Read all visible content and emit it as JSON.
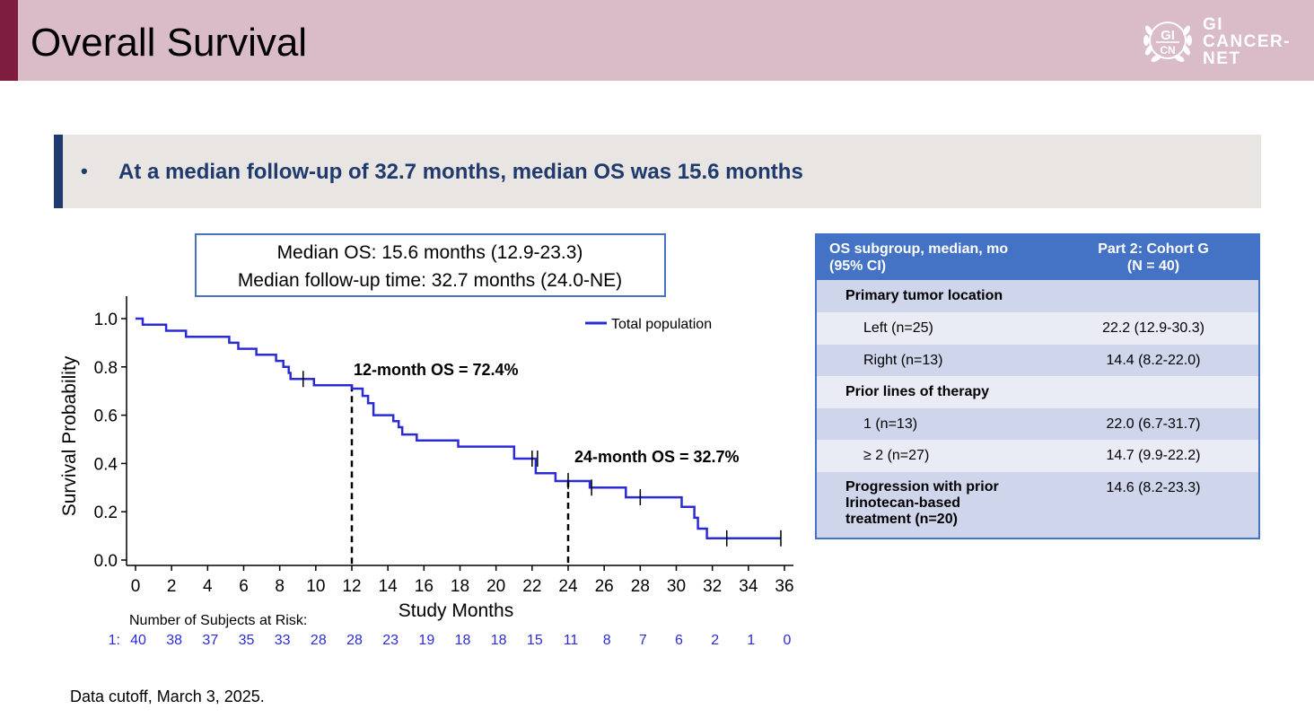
{
  "header": {
    "title": "Overall Survival",
    "logo_lines": [
      "GI",
      "CANCER-",
      "NET"
    ],
    "logo_badge": [
      "GI",
      "CN"
    ]
  },
  "bullet": {
    "marker": "•",
    "text": "At a median follow-up of 32.7 months, median OS was 15.6 months"
  },
  "chart_data": {
    "type": "line",
    "title": "",
    "xlabel": "Study Months",
    "ylabel": "Survival Probability",
    "xlim": [
      0,
      36
    ],
    "ylim": [
      0,
      1.0
    ],
    "x_ticks": [
      "0",
      "2",
      "4",
      "6",
      "8",
      "10",
      "12",
      "14",
      "16",
      "18",
      "20",
      "22",
      "24",
      "26",
      "28",
      "30",
      "32",
      "34",
      "36"
    ],
    "y_ticks": [
      "0.0",
      "0.2",
      "0.4",
      "0.6",
      "0.8",
      "1.0"
    ],
    "legend": {
      "position": "top-right",
      "label": "Total population"
    },
    "series": [
      {
        "name": "Total population",
        "color": "#2b2bd6",
        "points": [
          [
            0,
            1.0
          ],
          [
            0.4,
            1.0
          ],
          [
            0.4,
            0.975
          ],
          [
            1.7,
            0.975
          ],
          [
            1.7,
            0.95
          ],
          [
            2.8,
            0.95
          ],
          [
            2.8,
            0.925
          ],
          [
            5.2,
            0.925
          ],
          [
            5.2,
            0.9
          ],
          [
            5.7,
            0.9
          ],
          [
            5.7,
            0.875
          ],
          [
            6.7,
            0.875
          ],
          [
            6.7,
            0.85
          ],
          [
            7.8,
            0.85
          ],
          [
            7.8,
            0.825
          ],
          [
            8.2,
            0.825
          ],
          [
            8.2,
            0.8
          ],
          [
            8.5,
            0.8
          ],
          [
            8.5,
            0.775
          ],
          [
            8.6,
            0.775
          ],
          [
            8.6,
            0.75
          ],
          [
            9.9,
            0.75
          ],
          [
            9.9,
            0.724
          ],
          [
            12.0,
            0.724
          ],
          [
            12.0,
            0.71
          ],
          [
            12.6,
            0.71
          ],
          [
            12.6,
            0.68
          ],
          [
            12.9,
            0.68
          ],
          [
            12.9,
            0.65
          ],
          [
            13.2,
            0.65
          ],
          [
            13.2,
            0.6
          ],
          [
            14.3,
            0.6
          ],
          [
            14.3,
            0.575
          ],
          [
            14.6,
            0.575
          ],
          [
            14.6,
            0.55
          ],
          [
            14.8,
            0.55
          ],
          [
            14.8,
            0.52
          ],
          [
            15.6,
            0.52
          ],
          [
            15.6,
            0.495
          ],
          [
            17.9,
            0.495
          ],
          [
            17.9,
            0.47
          ],
          [
            21.0,
            0.47
          ],
          [
            21.0,
            0.42
          ],
          [
            22.2,
            0.42
          ],
          [
            22.2,
            0.36
          ],
          [
            23.3,
            0.36
          ],
          [
            23.3,
            0.327
          ],
          [
            25.2,
            0.327
          ],
          [
            25.2,
            0.3
          ],
          [
            27.2,
            0.3
          ],
          [
            27.2,
            0.26
          ],
          [
            30.3,
            0.26
          ],
          [
            30.3,
            0.22
          ],
          [
            31.0,
            0.22
          ],
          [
            31.0,
            0.175
          ],
          [
            31.2,
            0.175
          ],
          [
            31.2,
            0.13
          ],
          [
            31.7,
            0.13
          ],
          [
            31.7,
            0.09
          ],
          [
            35.8,
            0.09
          ]
        ],
        "censored": [
          [
            9.3,
            0.75
          ],
          [
            22.0,
            0.42
          ],
          [
            22.3,
            0.42
          ],
          [
            24.0,
            0.327
          ],
          [
            25.3,
            0.3
          ],
          [
            28.0,
            0.26
          ],
          [
            32.8,
            0.09
          ],
          [
            35.8,
            0.09
          ]
        ]
      }
    ],
    "annotations": [
      {
        "text": "12-month OS = 72.4%",
        "x": 12,
        "y": 0.724
      },
      {
        "text": "24-month OS = 32.7%",
        "x": 24,
        "y": 0.327
      }
    ],
    "info_box": [
      "Median OS: 15.6 months (12.9-23.3)",
      "Median follow-up time: 32.7 months (24.0-NE)"
    ],
    "risk_table": {
      "title": "Number of Subjects at Risk:",
      "row_label": "1:",
      "values": [
        "40",
        "38",
        "37",
        "35",
        "33",
        "28",
        "28",
        "23",
        "19",
        "18",
        "18",
        "15",
        "11",
        "8",
        "7",
        "6",
        "2",
        "1",
        "0"
      ]
    }
  },
  "table": {
    "header": {
      "col1": [
        "OS subgroup, median, mo",
        "(95% CI)"
      ],
      "col2": [
        "Part 2: Cohort G",
        "(N = 40)"
      ]
    },
    "rows": [
      {
        "label": "Primary tumor location",
        "value": ""
      },
      {
        "label": "Left (n=25)",
        "value": "22.2 (12.9-30.3)"
      },
      {
        "label": "Right (n=13)",
        "value": "14.4 (8.2-22.0)"
      },
      {
        "label": "Prior lines of therapy",
        "value": ""
      },
      {
        "label": "1 (n=13)",
        "value": "22.0 (6.7-31.7)"
      },
      {
        "label": "≥ 2 (n=27)",
        "value": "14.7 (9.9-22.2)"
      },
      {
        "label_lines": [
          "Progression with prior",
          "Irinotecan-based",
          "treatment (n=20)"
        ],
        "value": "14.6 (8.2-23.3)"
      }
    ]
  },
  "footnote": "Data cutoff, March 3, 2025."
}
